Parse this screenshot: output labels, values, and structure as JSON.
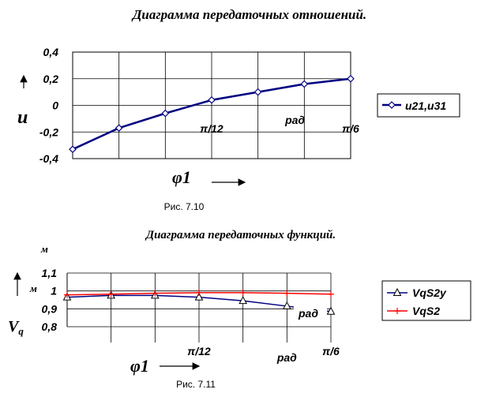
{
  "chart_data": [
    {
      "type": "line",
      "title": "Диаграмма передаточных отношений.",
      "ylabel": "u",
      "xlabel": "φ1",
      "ylim": [
        -0.4,
        0.4
      ],
      "yticks": [
        "0,4",
        "0,2",
        "0",
        "-0,2",
        "-0,4"
      ],
      "ytick_values": [
        0.4,
        0.2,
        0,
        -0.2,
        -0.4
      ],
      "x_tick_labels": [
        {
          "text": "π/12",
          "x": 3
        },
        {
          "text": "рад",
          "x": 4.8
        },
        {
          "text": "π/6",
          "x": 6
        }
      ],
      "xlim": [
        0,
        6
      ],
      "grid": true,
      "legend": "right",
      "series": [
        {
          "name": "u21,u31",
          "color": "#000080",
          "marker": "diamond",
          "x": [
            0,
            1,
            2,
            3,
            4,
            5,
            6
          ],
          "y": [
            -0.33,
            -0.17,
            -0.06,
            0.04,
            0.1,
            0.16,
            0.2
          ]
        }
      ],
      "caption": "Рис. 7.10"
    },
    {
      "type": "line",
      "title": "Диаграмма передаточных функций.",
      "ylabel": "Vq",
      "y_unit_top": "м",
      "y_unit_mid": "м",
      "xlabel": "φ1",
      "ylim": [
        0.8,
        1.1
      ],
      "yticks": [
        "1,1",
        "1",
        "0,9",
        "0,8"
      ],
      "ytick_values": [
        1.1,
        1.0,
        0.9,
        0.8
      ],
      "x_tick_labels": [
        {
          "text": "π/12",
          "x": 3
        },
        {
          "text": "рад",
          "x": 5
        },
        {
          "text": "π/6",
          "x": 6
        }
      ],
      "inner_label": "рад",
      "xlim": [
        0,
        6
      ],
      "grid": true,
      "legend": "right",
      "series": [
        {
          "name": "VqS2y",
          "color": "#000080",
          "marker": "triangle",
          "x": [
            0,
            1,
            2,
            3,
            4,
            5,
            6
          ],
          "y": [
            0.965,
            0.975,
            0.975,
            0.965,
            0.945,
            0.915,
            0.885
          ]
        },
        {
          "name": "VqS2",
          "color": "#ff0000",
          "marker": "plus",
          "x": [
            0,
            1,
            2,
            3,
            4,
            5,
            6
          ],
          "y": [
            0.978,
            0.982,
            0.987,
            0.99,
            0.99,
            0.987,
            0.982
          ]
        }
      ],
      "caption": "Рис. 7.11"
    }
  ]
}
